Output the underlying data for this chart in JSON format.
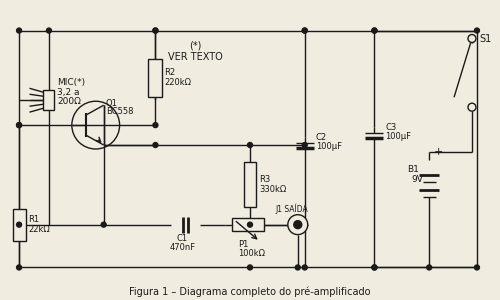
{
  "bg_color": "#f0ece0",
  "line_color": "#1a1a1a",
  "title": "Figura 1 – Diagrama completo do pré-amplificado",
  "components": {
    "mic_label": [
      "MIC(*)",
      "3,2 a",
      "200Ω"
    ],
    "r2_label": [
      "R2",
      "220kΩ"
    ],
    "q1_label": [
      "Q1",
      "BC558"
    ],
    "r1_label": [
      "R1",
      "22kΩ"
    ],
    "c1_label": [
      "C1",
      "470nF"
    ],
    "p1_label": [
      "P1",
      "100kΩ"
    ],
    "j1_label": "J1 SAÍDA",
    "c2_label": [
      "C2",
      "100μF"
    ],
    "c3_label": [
      "C3",
      "100μF"
    ],
    "r3_label": [
      "R3",
      "330kΩ"
    ],
    "s1_label": "S1",
    "b1_label": [
      "B1",
      "9V"
    ],
    "ver_texto": [
      "(*)",
      "VER TEXTO"
    ]
  }
}
